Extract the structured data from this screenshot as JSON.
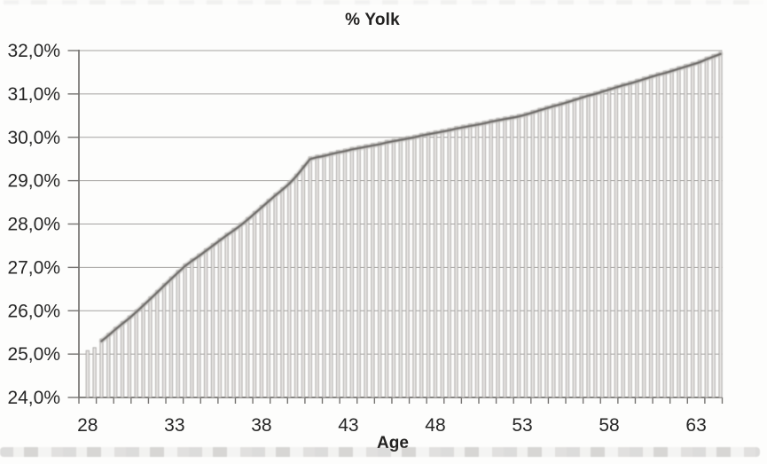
{
  "chart_data": {
    "type": "line",
    "title": "% Yolk",
    "xlabel": "Age",
    "ylabel": "",
    "legend": "none",
    "grid": "horizontal",
    "drop_lines": true,
    "line_start_index": 2,
    "decimal_separator": ",",
    "ylim": [
      24,
      32
    ],
    "xlim": [
      28,
      64.4
    ],
    "x_start": 28,
    "x_step": 0.4,
    "xticks": [
      28,
      33,
      38,
      43,
      48,
      53,
      58,
      63
    ],
    "yticks": [
      24,
      25,
      26,
      27,
      28,
      29,
      30,
      31,
      32
    ],
    "ytick_labels": [
      "24,0%",
      "25,0%",
      "26,0%",
      "27,0%",
      "28,0%",
      "29,0%",
      "30,0%",
      "31,0%",
      "32,0%"
    ],
    "x_values": [
      28,
      28.4,
      28.8,
      29.2,
      29.6,
      30,
      30.4,
      30.8,
      31.2,
      31.6,
      32,
      32.4,
      32.8,
      33.2,
      33.6,
      34,
      34.4,
      34.8,
      35.2,
      35.6,
      36,
      36.4,
      36.8,
      37.2,
      37.6,
      38,
      38.4,
      38.8,
      39.2,
      39.6,
      40,
      40.4,
      40.8,
      41.2,
      41.6,
      42,
      42.4,
      42.8,
      43.2,
      43.6,
      44,
      44.4,
      44.8,
      45.2,
      45.6,
      46,
      46.4,
      46.8,
      47.2,
      47.6,
      48,
      48.4,
      48.8,
      49.2,
      49.6,
      50,
      50.4,
      50.8,
      51.2,
      51.6,
      52,
      52.4,
      52.8,
      53.2,
      53.6,
      54,
      54.4,
      54.8,
      55.2,
      55.6,
      56,
      56.4,
      56.8,
      57.2,
      57.6,
      58,
      58.4,
      58.8,
      59.2,
      59.6,
      60,
      60.4,
      60.8,
      61.2,
      61.6,
      62,
      62.4,
      62.8,
      63.2,
      63.6,
      64,
      64.4
    ],
    "series": [
      {
        "name": "% Yolk",
        "values": [
          25.03,
          25.1,
          25.3,
          25.43,
          25.57,
          25.7,
          25.83,
          25.97,
          26.12,
          26.27,
          26.42,
          26.58,
          26.73,
          26.88,
          27.03,
          27.15,
          27.26,
          27.38,
          27.5,
          27.62,
          27.74,
          27.85,
          27.97,
          28.1,
          28.24,
          28.38,
          28.52,
          28.66,
          28.79,
          28.93,
          29.1,
          29.3,
          29.5,
          29.54,
          29.57,
          29.61,
          29.65,
          29.68,
          29.72,
          29.75,
          29.78,
          29.81,
          29.84,
          29.88,
          29.91,
          29.94,
          29.97,
          30.0,
          30.04,
          30.07,
          30.1,
          30.13,
          30.16,
          30.2,
          30.23,
          30.26,
          30.29,
          30.32,
          30.36,
          30.39,
          30.42,
          30.45,
          30.48,
          30.52,
          30.57,
          30.62,
          30.67,
          30.72,
          30.76,
          30.81,
          30.86,
          30.91,
          30.96,
          31.0,
          31.05,
          31.1,
          31.15,
          31.2,
          31.24,
          31.29,
          31.34,
          31.39,
          31.44,
          31.48,
          31.53,
          31.58,
          31.63,
          31.68,
          31.73,
          31.8,
          31.86,
          31.92
        ]
      }
    ],
    "colors": {
      "line": "#6f6d6b",
      "line_halo": "#c7c4c1",
      "bar_fill": "#e8e6e4",
      "bar_edge": "#a19e9c",
      "gridline": "#a5a3a1",
      "axis": "#767472",
      "text": "#262626",
      "background": "#fdfdfc"
    }
  }
}
